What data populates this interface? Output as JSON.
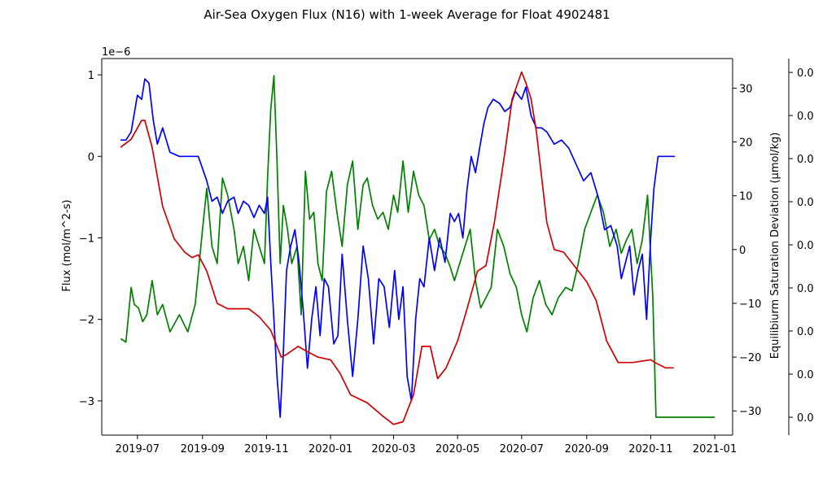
{
  "chart_data": {
    "type": "line",
    "title": "Air-Sea Oxygen Flux (N16) with 1-week Average for Float 4902481",
    "x_axis": {
      "type": "date",
      "range": [
        "2019-05-28",
        "2021-01-18"
      ],
      "ticks": [
        "2019-07",
        "2019-09",
        "2019-11",
        "2020-01",
        "2020-03",
        "2020-05",
        "2020-07",
        "2020-09",
        "2020-11",
        "2021-01"
      ]
    },
    "left_axis": {
      "label": "Flux (mol/m^2-s)",
      "label_color": "#0000ff",
      "offset_text": "1e−6",
      "range": [
        -3.42,
        1.2
      ],
      "ticks": [
        1,
        0,
        -1,
        -2,
        -3
      ],
      "tick_labels": [
        "1",
        "0",
        "−1",
        "−2",
        "−3"
      ]
    },
    "right_axis": {
      "label": "Equilibiurm Saturation Deviation (µmol/kg)",
      "label_color": "#d00000",
      "range": [
        -34.5,
        35.5
      ],
      "ticks": [
        30,
        20,
        10,
        0,
        -10,
        -20,
        -30
      ],
      "tick_labels": [
        "30",
        "20",
        "10",
        "0",
        "−10",
        "−20",
        "−30"
      ]
    },
    "third_axis": {
      "tick_labels": [
        "0.0",
        "0.0",
        "0.0",
        "0.0",
        "0.0",
        "0.0",
        "0.0",
        "0.0",
        "0.0"
      ]
    },
    "grid": false,
    "series": [
      {
        "axis": "left",
        "color": "#0000ff",
        "x": [
          "2019-06-15",
          "2019-06-20",
          "2019-06-25",
          "2019-07-01",
          "2019-07-05",
          "2019-07-08",
          "2019-07-12",
          "2019-07-16",
          "2019-07-20",
          "2019-07-25",
          "2019-08-01",
          "2019-08-10",
          "2019-08-20",
          "2019-08-28",
          "2019-09-05",
          "2019-09-10",
          "2019-09-15",
          "2019-09-20",
          "2019-09-25",
          "2019-10-01",
          "2019-10-05",
          "2019-10-10",
          "2019-10-15",
          "2019-10-20",
          "2019-10-25",
          "2019-10-30",
          "2019-11-02",
          "2019-11-05",
          "2019-11-08",
          "2019-11-11",
          "2019-11-14",
          "2019-11-17",
          "2019-11-20",
          "2019-11-24",
          "2019-11-28",
          "2019-12-02",
          "2019-12-06",
          "2019-12-10",
          "2019-12-14",
          "2019-12-18",
          "2019-12-22",
          "2019-12-26",
          "2019-12-30",
          "2020-01-04",
          "2020-01-08",
          "2020-01-12",
          "2020-01-17",
          "2020-01-22",
          "2020-01-27",
          "2020-02-01",
          "2020-02-06",
          "2020-02-11",
          "2020-02-16",
          "2020-02-21",
          "2020-02-26",
          "2020-03-02",
          "2020-03-06",
          "2020-03-10",
          "2020-03-14",
          "2020-03-18",
          "2020-03-22",
          "2020-03-26",
          "2020-03-30",
          "2020-04-04",
          "2020-04-09",
          "2020-04-14",
          "2020-04-19",
          "2020-04-24",
          "2020-04-28",
          "2020-05-02",
          "2020-05-06",
          "2020-05-10",
          "2020-05-14",
          "2020-05-18",
          "2020-05-22",
          "2020-05-26",
          "2020-05-30",
          "2020-06-04",
          "2020-06-10",
          "2020-06-15",
          "2020-06-20",
          "2020-06-25",
          "2020-07-01",
          "2020-07-05",
          "2020-07-10",
          "2020-07-15",
          "2020-07-20",
          "2020-07-25",
          "2020-08-01",
          "2020-08-08",
          "2020-08-15",
          "2020-08-22",
          "2020-08-29",
          "2020-09-05",
          "2020-09-12",
          "2020-09-18",
          "2020-09-24",
          "2020-09-30",
          "2020-10-04",
          "2020-10-08",
          "2020-10-12",
          "2020-10-16",
          "2020-10-20",
          "2020-10-24",
          "2020-10-28",
          "2020-11-01",
          "2020-11-04",
          "2020-11-08",
          "2020-11-12",
          "2020-11-24"
        ],
        "values": [
          0.2,
          0.2,
          0.3,
          0.75,
          0.7,
          0.95,
          0.9,
          0.45,
          0.15,
          0.35,
          0.05,
          0.0,
          0.0,
          0.0,
          -0.3,
          -0.55,
          -0.5,
          -0.7,
          -0.55,
          -0.5,
          -0.7,
          -0.55,
          -0.6,
          -0.75,
          -0.6,
          -0.7,
          -0.5,
          -1.3,
          -2.0,
          -2.7,
          -3.2,
          -2.4,
          -1.4,
          -1.1,
          -0.9,
          -1.3,
          -1.9,
          -2.6,
          -2.0,
          -1.6,
          -2.2,
          -1.5,
          -1.6,
          -2.3,
          -2.2,
          -1.2,
          -2.0,
          -2.7,
          -2.0,
          -1.1,
          -1.5,
          -2.3,
          -1.5,
          -1.6,
          -2.1,
          -1.4,
          -2.0,
          -1.6,
          -2.7,
          -3.0,
          -2.0,
          -1.5,
          -1.6,
          -1.0,
          -1.4,
          -1.0,
          -1.3,
          -0.7,
          -0.8,
          -0.7,
          -1.0,
          -0.4,
          0.0,
          -0.2,
          0.1,
          0.4,
          0.6,
          0.7,
          0.65,
          0.55,
          0.6,
          0.8,
          0.7,
          0.85,
          0.5,
          0.35,
          0.35,
          0.3,
          0.15,
          0.2,
          0.1,
          -0.1,
          -0.3,
          -0.2,
          -0.5,
          -0.9,
          -0.85,
          -1.1,
          -1.5,
          -1.3,
          -1.1,
          -1.7,
          -1.4,
          -1.2,
          -2.0,
          -1.0,
          -0.4,
          0.0,
          0.0,
          0.0
        ]
      },
      {
        "axis": "right",
        "color": "#d00000",
        "x": [
          "2019-06-15",
          "2019-06-25",
          "2019-07-05",
          "2019-07-08",
          "2019-07-15",
          "2019-07-25",
          "2019-08-05",
          "2019-08-15",
          "2019-08-22",
          "2019-08-28",
          "2019-09-05",
          "2019-09-15",
          "2019-09-25",
          "2019-10-05",
          "2019-10-15",
          "2019-10-25",
          "2019-11-05",
          "2019-11-15",
          "2019-11-20",
          "2019-12-01",
          "2019-12-10",
          "2019-12-20",
          "2020-01-01",
          "2020-01-10",
          "2020-01-20",
          "2020-02-05",
          "2020-02-20",
          "2020-03-01",
          "2020-03-10",
          "2020-03-20",
          "2020-03-28",
          "2020-04-05",
          "2020-04-12",
          "2020-04-20",
          "2020-05-01",
          "2020-05-10",
          "2020-05-20",
          "2020-05-28",
          "2020-06-05",
          "2020-06-15",
          "2020-06-22",
          "2020-07-01",
          "2020-07-05",
          "2020-07-10",
          "2020-07-15",
          "2020-07-25",
          "2020-08-01",
          "2020-08-10",
          "2020-08-20",
          "2020-09-01",
          "2020-09-10",
          "2020-09-20",
          "2020-10-01",
          "2020-10-15",
          "2020-11-01",
          "2020-11-05",
          "2020-11-15",
          "2020-11-23"
        ],
        "values": [
          19,
          20.5,
          24,
          24,
          19,
          8,
          2,
          -0.5,
          -1.5,
          -1,
          -4,
          -10,
          -11,
          -11,
          -11,
          -12.5,
          -15,
          -20,
          -19.5,
          -18,
          -19,
          -20,
          -20.5,
          -23,
          -27,
          -28.5,
          -31,
          -32.5,
          -32,
          -27,
          -18,
          -18,
          -24,
          -22,
          -17,
          -11,
          -4,
          -3,
          5,
          18,
          28,
          33,
          31,
          28,
          22,
          5,
          0,
          -0.5,
          -3,
          -6,
          -9.5,
          -17,
          -21,
          -21,
          -20.5,
          -21,
          -22,
          -22
        ]
      },
      {
        "axis": "third",
        "color": "#008000",
        "x": [
          "2019-06-15",
          "2019-06-20",
          "2019-06-25",
          "2019-06-28",
          "2019-07-02",
          "2019-07-06",
          "2019-07-10",
          "2019-07-15",
          "2019-07-20",
          "2019-07-25",
          "2019-08-01",
          "2019-08-10",
          "2019-08-18",
          "2019-08-25",
          "2019-09-01",
          "2019-09-05",
          "2019-09-10",
          "2019-09-15",
          "2019-09-20",
          "2019-09-25",
          "2019-10-01",
          "2019-10-05",
          "2019-10-10",
          "2019-10-15",
          "2019-10-20",
          "2019-10-25",
          "2019-10-30",
          "2019-11-02",
          "2019-11-05",
          "2019-11-08",
          "2019-11-11",
          "2019-11-14",
          "2019-11-17",
          "2019-11-21",
          "2019-11-25",
          "2019-11-30",
          "2019-12-04",
          "2019-12-08",
          "2019-12-12",
          "2019-12-16",
          "2019-12-20",
          "2019-12-24",
          "2019-12-28",
          "2020-01-02",
          "2020-01-07",
          "2020-01-12",
          "2020-01-17",
          "2020-01-22",
          "2020-01-27",
          "2020-02-01",
          "2020-02-05",
          "2020-02-10",
          "2020-02-15",
          "2020-02-20",
          "2020-02-25",
          "2020-03-01",
          "2020-03-05",
          "2020-03-10",
          "2020-03-15",
          "2020-03-20",
          "2020-03-25",
          "2020-03-30",
          "2020-04-04",
          "2020-04-09",
          "2020-04-14",
          "2020-04-19",
          "2020-04-24",
          "2020-04-28",
          "2020-05-03",
          "2020-05-08",
          "2020-05-13",
          "2020-05-18",
          "2020-05-23",
          "2020-05-28",
          "2020-06-02",
          "2020-06-08",
          "2020-06-14",
          "2020-06-20",
          "2020-06-26",
          "2020-07-01",
          "2020-07-06",
          "2020-07-12",
          "2020-07-18",
          "2020-07-24",
          "2020-07-30",
          "2020-08-05",
          "2020-08-12",
          "2020-08-18",
          "2020-08-24",
          "2020-08-30",
          "2020-09-05",
          "2020-09-11",
          "2020-09-17",
          "2020-09-23",
          "2020-09-29",
          "2020-10-04",
          "2020-10-09",
          "2020-10-14",
          "2020-10-19",
          "2020-10-24",
          "2020-10-29",
          "2020-11-03",
          "2020-11-06",
          "2020-11-10",
          "2020-11-18",
          "2020-12-15",
          "2021-01-01"
        ],
        "values": [
          0.23,
          0.22,
          0.38,
          0.33,
          0.32,
          0.28,
          0.3,
          0.4,
          0.3,
          0.33,
          0.25,
          0.3,
          0.25,
          0.33,
          0.55,
          0.67,
          0.5,
          0.45,
          0.7,
          0.65,
          0.55,
          0.45,
          0.5,
          0.4,
          0.55,
          0.5,
          0.45,
          0.7,
          0.9,
          1.0,
          0.75,
          0.45,
          0.62,
          0.55,
          0.45,
          0.5,
          0.3,
          0.72,
          0.58,
          0.6,
          0.45,
          0.4,
          0.66,
          0.72,
          0.6,
          0.5,
          0.68,
          0.75,
          0.55,
          0.68,
          0.7,
          0.62,
          0.58,
          0.6,
          0.55,
          0.65,
          0.6,
          0.75,
          0.6,
          0.72,
          0.65,
          0.62,
          0.52,
          0.55,
          0.5,
          0.48,
          0.44,
          0.4,
          0.45,
          0.5,
          0.55,
          0.4,
          0.32,
          0.35,
          0.38,
          0.55,
          0.5,
          0.42,
          0.38,
          0.3,
          0.25,
          0.35,
          0.4,
          0.33,
          0.3,
          0.35,
          0.38,
          0.37,
          0.45,
          0.55,
          0.6,
          0.65,
          0.6,
          0.5,
          0.55,
          0.48,
          0.52,
          0.55,
          0.45,
          0.52,
          0.65,
          0.35,
          0.0,
          0.0,
          0.0,
          0.0,
          0.0
        ]
      }
    ]
  }
}
